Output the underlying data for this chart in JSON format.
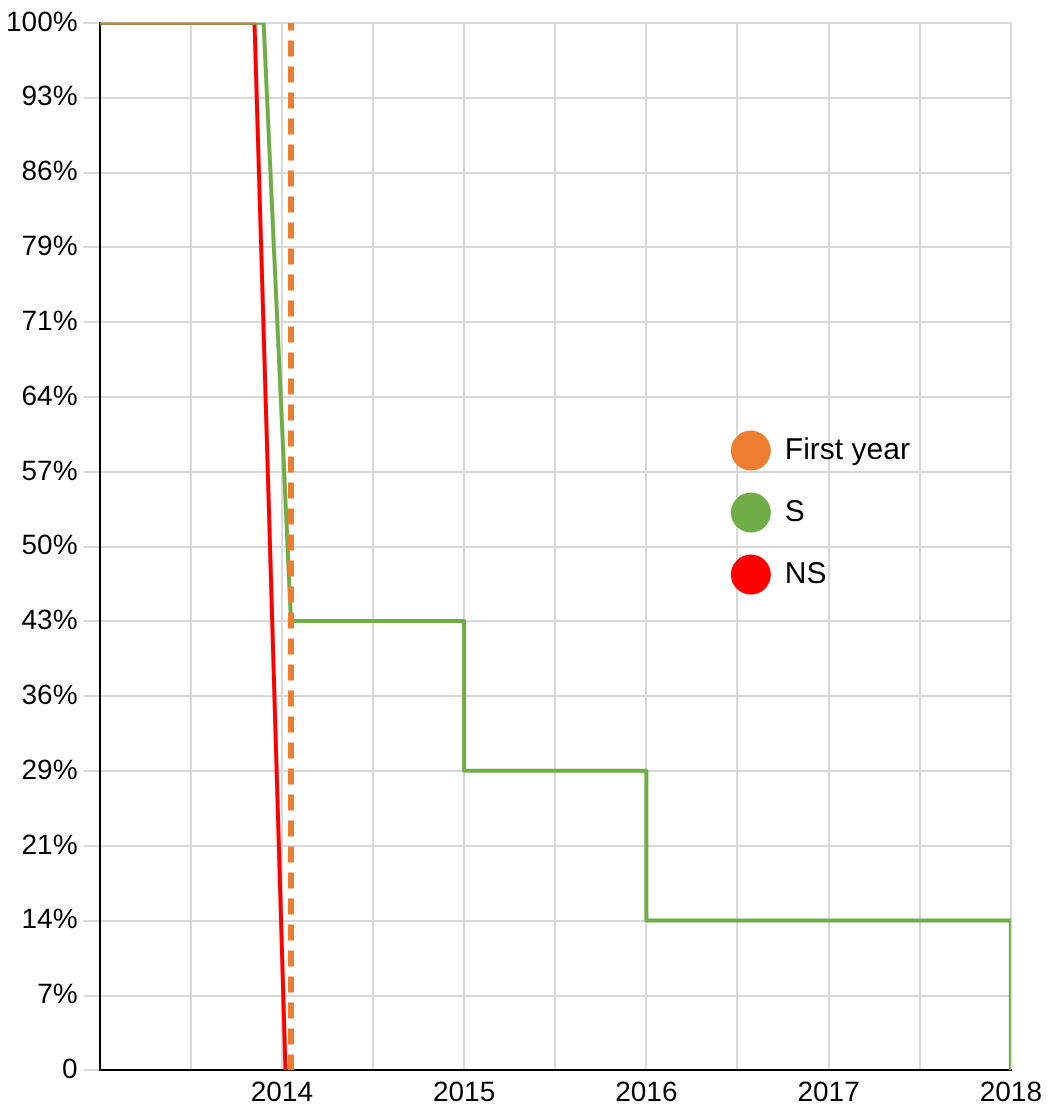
{
  "chart_data": {
    "type": "line",
    "xlim": [
      2013,
      2018
    ],
    "xticks": [
      {
        "value": 2013,
        "label": null
      },
      {
        "value": 2013.5,
        "label": null
      },
      2014,
      {
        "value": 2014.5,
        "label": null
      },
      2015,
      {
        "value": 2015.5,
        "label": null
      },
      2016,
      {
        "value": 2016.5,
        "label": null
      },
      2017,
      {
        "value": 2017.5,
        "label": null
      },
      2018
    ],
    "ylim": [
      0,
      100
    ],
    "yticks": [
      {
        "value": 0,
        "label": "0"
      },
      {
        "value": 7.14,
        "label": "7%"
      },
      {
        "value": 14.29,
        "label": "14%"
      },
      {
        "value": 21.43,
        "label": "21%"
      },
      {
        "value": 28.57,
        "label": "29%"
      },
      {
        "value": 35.71,
        "label": "36%"
      },
      {
        "value": 42.86,
        "label": "43%"
      },
      {
        "value": 50,
        "label": "50%"
      },
      {
        "value": 57.14,
        "label": "57%"
      },
      {
        "value": 64.29,
        "label": "64%"
      },
      {
        "value": 71.43,
        "label": "71%"
      },
      {
        "value": 78.57,
        "label": "79%"
      },
      {
        "value": 85.71,
        "label": "86%"
      },
      {
        "value": 92.86,
        "label": "93%"
      },
      {
        "value": 100,
        "label": "100%"
      }
    ],
    "series": [
      {
        "name": "First year",
        "color": "#ed7d31",
        "line_style": "dashed",
        "x": [
          2014.05,
          2014.05
        ],
        "values": [
          0,
          100
        ]
      },
      {
        "name": "S",
        "color": "#70ad47",
        "x": [
          2013,
          2013.9,
          2014.05,
          2015,
          2015,
          2016,
          2016,
          2018,
          2018
        ],
        "values": [
          100,
          100,
          42.9,
          42.9,
          28.6,
          28.6,
          14.3,
          14.3,
          0
        ]
      },
      {
        "name": "NS",
        "color": "#ff0000",
        "x": [
          2013,
          2013.85,
          2014.02
        ],
        "values": [
          100,
          100,
          0
        ]
      }
    ],
    "grid": true,
    "legend": "right",
    "marker": "none",
    "line_style": "solid"
  }
}
